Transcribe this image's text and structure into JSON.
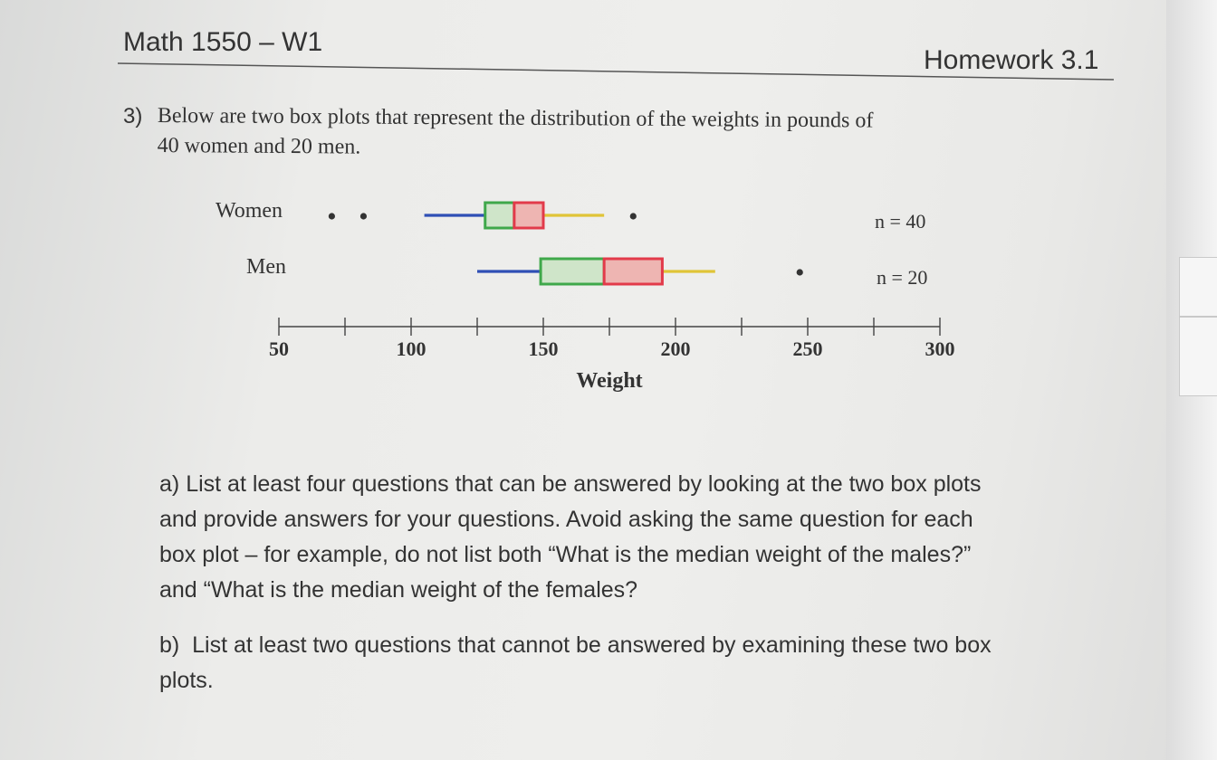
{
  "header": {
    "course": "Math 1550 – W1",
    "assignment": "Homework 3.1"
  },
  "question": {
    "number": "3)",
    "line1": "Below are two box plots that represent the distribution of the weights in pounds of",
    "line2": "40 women and 20 men."
  },
  "chart_data": {
    "type": "boxplot",
    "xlabel": "Weight",
    "xlim": [
      50,
      300
    ],
    "ticks": [
      50,
      75,
      100,
      125,
      150,
      175,
      200,
      225,
      250,
      275,
      300
    ],
    "tick_labels": [
      "50",
      "100",
      "150",
      "200",
      "250",
      "300"
    ],
    "colors": {
      "lower_whisker": "#2f4fb5",
      "lower_box": "#3fa84a",
      "upper_box": "#e23a4a",
      "upper_whisker": "#e0c437",
      "box_fill_low": "#cfe5c9",
      "box_fill_high": "#eeb5b2"
    },
    "series": [
      {
        "name": "Women",
        "n_label": "n = 40",
        "min": 105,
        "q1": 128,
        "median": 139,
        "q3": 150,
        "max": 173,
        "outliers": [
          70,
          82,
          184
        ]
      },
      {
        "name": "Men",
        "n_label": "n = 20",
        "min": 125,
        "q1": 149,
        "median": 173,
        "q3": 195,
        "max": 215,
        "outliers": [
          247
        ]
      }
    ]
  },
  "parts": {
    "a_label": "a)",
    "a_line1": "List at least four questions that can be answered by looking at the two box plots",
    "a_line2": "and provide answers for your questions.  Avoid asking the same question for each",
    "a_line3": "box plot – for example, do not list both “What is the median weight of the males?”",
    "a_line4": "and “What is the median weight of the females?",
    "b_label": "b)",
    "b_line1": "List at least two questions that cannot be answered by examining these two box",
    "b_line2": "plots."
  }
}
